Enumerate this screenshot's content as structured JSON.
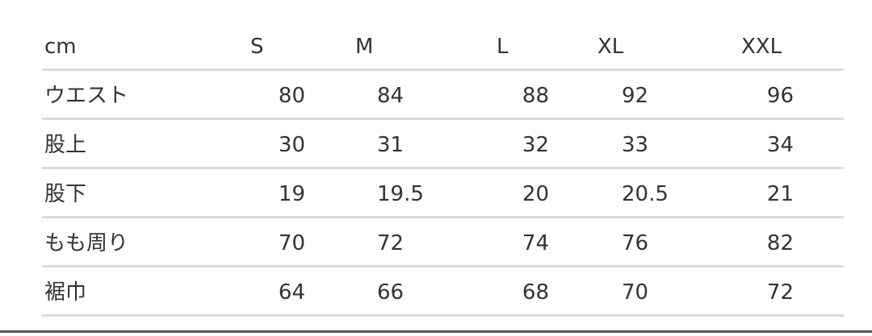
{
  "table": {
    "header": [
      "cm",
      "S",
      "M",
      "L",
      "XL",
      "XXL"
    ],
    "rows": [
      [
        "ウエスト",
        80,
        84,
        88,
        92,
        96
      ],
      [
        "股上",
        30,
        31,
        32,
        33,
        34
      ],
      [
        "股下",
        19,
        19.5,
        20,
        20.5,
        21
      ],
      [
        "もも周り",
        70,
        72,
        74,
        76,
        82
      ],
      [
        "裾巾",
        64,
        66,
        68,
        70,
        72
      ]
    ]
  }
}
